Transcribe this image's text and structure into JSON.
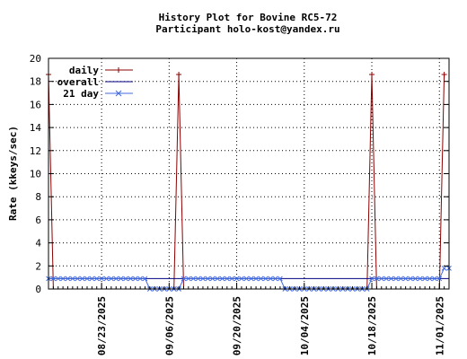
{
  "chart_data": {
    "type": "line",
    "title": "History Plot for Bovine RC5-72",
    "subtitle": "Participant holo-kost@yandex.ru",
    "xlabel": "",
    "ylabel": "Rate (kkeys/sec)",
    "x_start": "2025-08-12",
    "x_end": "2025-11-03",
    "ylim": [
      0,
      20
    ],
    "yticks": [
      0,
      2,
      4,
      6,
      8,
      10,
      12,
      14,
      16,
      18,
      20
    ],
    "xticks": [
      "08/23/2025",
      "09/06/2025",
      "09/20/2025",
      "10/04/2025",
      "10/18/2025",
      "11/01/2025"
    ],
    "grid": true,
    "legend_position": "top-left",
    "series": [
      {
        "name": "daily",
        "color": "#8b0000",
        "marker": "plus",
        "points": [
          [
            "2025-08-12",
            18.6
          ],
          [
            "2025-08-13",
            0
          ],
          [
            "2025-09-07",
            0
          ],
          [
            "2025-09-08",
            18.6
          ],
          [
            "2025-09-09",
            0
          ],
          [
            "2025-10-17",
            0
          ],
          [
            "2025-10-18",
            18.6
          ],
          [
            "2025-10-19",
            0
          ],
          [
            "2025-11-01",
            0
          ],
          [
            "2025-11-02",
            18.6
          ]
        ]
      },
      {
        "name": "overall",
        "color": "#000080",
        "marker": "none",
        "points": [
          [
            "2025-08-12",
            0.9
          ],
          [
            "2025-11-03",
            0.9
          ]
        ]
      },
      {
        "name": "21 day",
        "color": "#4169e1",
        "marker": "cross",
        "points": [
          [
            "2025-08-12",
            0.9
          ],
          [
            "2025-09-01",
            0.9
          ],
          [
            "2025-09-02",
            0
          ],
          [
            "2025-09-08",
            0
          ],
          [
            "2025-09-09",
            0.9
          ],
          [
            "2025-09-29",
            0.9
          ],
          [
            "2025-09-30",
            0
          ],
          [
            "2025-10-17",
            0
          ],
          [
            "2025-10-18",
            0.9
          ],
          [
            "2025-11-01",
            0.9
          ],
          [
            "2025-11-02",
            1.8
          ]
        ]
      }
    ]
  }
}
